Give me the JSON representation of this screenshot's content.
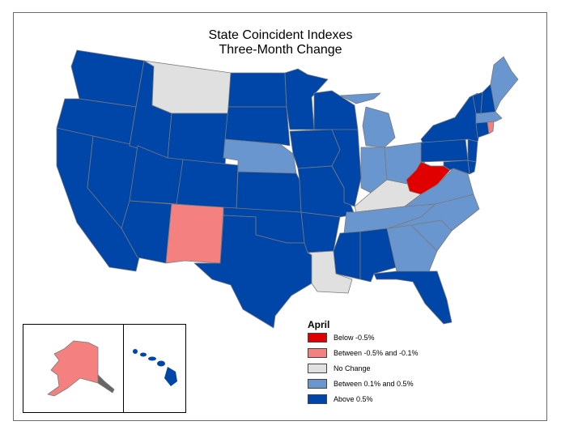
{
  "title_line1": "State Coincident Indexes",
  "title_line2": "Three-Month Change",
  "colors": {
    "below_neg_0_5": "#e00000",
    "between_neg_0_5_and_neg_0_1": "#f48080",
    "no_change": "#e0e0e0",
    "between_0_1_and_0_5": "#6a96cf",
    "above_0_5": "#0046a8",
    "border": "#777777"
  },
  "legend": {
    "title": "April",
    "items": [
      {
        "label": "Below -0.5%",
        "color": "#e00000"
      },
      {
        "label": "Between -0.5% and -0.1%",
        "color": "#f48080"
      },
      {
        "label": "No Change",
        "color": "#e0e0e0"
      },
      {
        "label": "Between 0.1% and 0.5%",
        "color": "#6a96cf"
      },
      {
        "label": "Above 0.5%",
        "color": "#0046a8"
      }
    ]
  },
  "categories": {
    "below_neg_0_5": [
      "WV"
    ],
    "between_neg_0_5_and_neg_0_1": [
      "NM",
      "RI",
      "AK"
    ],
    "no_change": [
      "MT",
      "KY",
      "LA"
    ],
    "between_0_1_and_0_5": [
      "NE",
      "MI",
      "IN",
      "OH",
      "TN",
      "VA",
      "NC",
      "SC",
      "GA",
      "ME",
      "MA"
    ],
    "above_0_5": [
      "WA",
      "OR",
      "CA",
      "NV",
      "ID",
      "UT",
      "AZ",
      "WY",
      "CO",
      "ND",
      "SD",
      "KS",
      "OK",
      "TX",
      "MN",
      "IA",
      "MO",
      "AR",
      "WI",
      "IL",
      "MS",
      "AL",
      "FL",
      "PA",
      "NY",
      "VT",
      "NH",
      "NJ",
      "DE",
      "MD",
      "CT",
      "HI"
    ]
  }
}
